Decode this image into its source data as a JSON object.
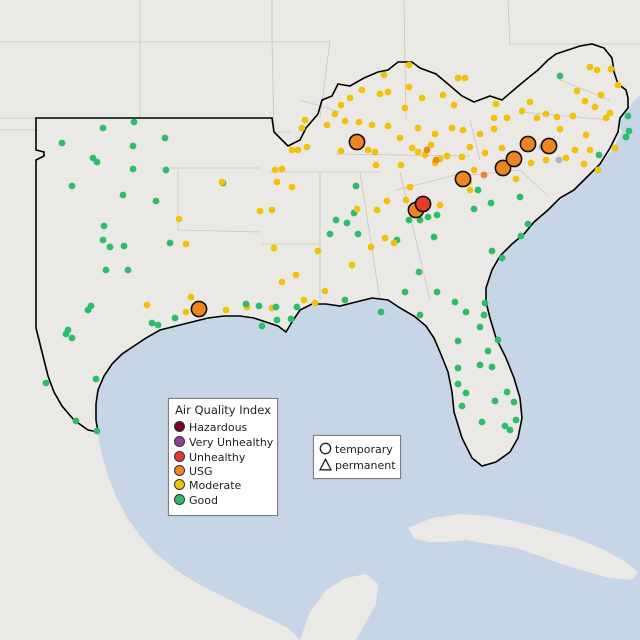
{
  "colors": {
    "water": "#c6d6e6",
    "land": "#ebe9e5",
    "outline": "#000000",
    "hazardous": "#7e0023",
    "very_unhealthy": "#8f3f97",
    "unhealthy": "#e53b2c",
    "usg": "#ef8422",
    "moderate": "#f0c20a",
    "good": "#2cbd6b",
    "no_data": "#b5b5b5"
  },
  "aqi_legend": {
    "title": "Air Quality Index",
    "items": [
      {
        "label": "Hazardous",
        "color": "#7e0023"
      },
      {
        "label": "Very Unhealthy",
        "color": "#8f3f97"
      },
      {
        "label": "Unhealthy",
        "color": "#e53b2c"
      },
      {
        "label": "USG",
        "color": "#ef8422"
      },
      {
        "label": "Moderate",
        "color": "#f0c20a"
      },
      {
        "label": "Good",
        "color": "#2cbd6b"
      }
    ]
  },
  "shape_legend": {
    "items": [
      {
        "label": "temporary",
        "shape": "circle-icon"
      },
      {
        "label": "permanent",
        "shape": "triangle-icon"
      }
    ]
  }
}
